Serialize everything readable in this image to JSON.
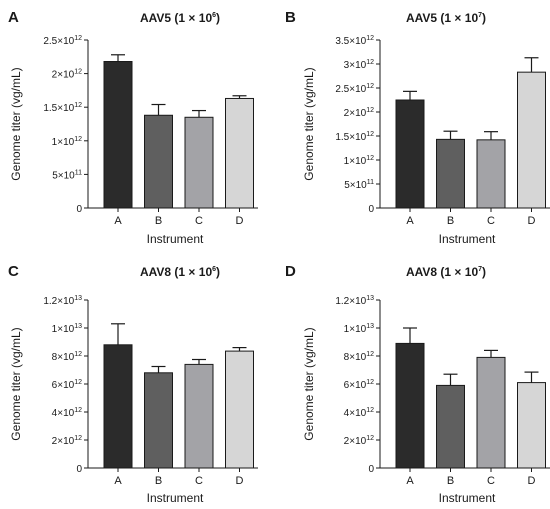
{
  "x_axis_title": "Instrument",
  "y_axis_title": "Genome titer (vg/mL)",
  "colors": [
    "#2b2b2b",
    "#5f5f5f",
    "#a3a3a7",
    "#d6d6d6"
  ],
  "chart_data": [
    {
      "panel": "A",
      "type": "bar",
      "title": "AAV5 (1 × 10",
      "title_exp": "6",
      "title_end": ")",
      "categories": [
        "A",
        "B",
        "C",
        "D"
      ],
      "values": [
        2180000000000.0,
        1380000000000.0,
        1350000000000.0,
        1630000000000.0
      ],
      "errors": [
        100000000000.0,
        160000000000.0,
        100000000000.0,
        40000000000.0
      ],
      "ylim": [
        0,
        2500000000000.0
      ],
      "yticks": [
        {
          "v": 0,
          "m": "0",
          "e": ""
        },
        {
          "v": 500000000000.0,
          "m": "5×10",
          "e": "11"
        },
        {
          "v": 1000000000000.0,
          "m": "1×10",
          "e": "12"
        },
        {
          "v": 1500000000000.0,
          "m": "1.5×10",
          "e": "12"
        },
        {
          "v": 2000000000000.0,
          "m": "2×10",
          "e": "12"
        },
        {
          "v": 2500000000000.0,
          "m": "2.5×10",
          "e": "12"
        }
      ],
      "xlabel": "Instrument",
      "ylabel": "Genome titer (vg/mL)"
    },
    {
      "panel": "B",
      "type": "bar",
      "title": "AAV5 (1 × 10",
      "title_exp": "7",
      "title_end": ")",
      "categories": [
        "A",
        "B",
        "C",
        "D"
      ],
      "values": [
        2250000000000.0,
        1430000000000.0,
        1420000000000.0,
        2830000000000.0
      ],
      "errors": [
        180000000000.0,
        170000000000.0,
        170000000000.0,
        300000000000.0
      ],
      "ylim": [
        0,
        3500000000000.0
      ],
      "yticks": [
        {
          "v": 0,
          "m": "0",
          "e": ""
        },
        {
          "v": 500000000000.0,
          "m": "5×10",
          "e": "11"
        },
        {
          "v": 1000000000000.0,
          "m": "1×10",
          "e": "12"
        },
        {
          "v": 1500000000000.0,
          "m": "1.5×10",
          "e": "12"
        },
        {
          "v": 2000000000000.0,
          "m": "2×10",
          "e": "12"
        },
        {
          "v": 2500000000000.0,
          "m": "2.5×10",
          "e": "12"
        },
        {
          "v": 3000000000000.0,
          "m": "3×10",
          "e": "12"
        },
        {
          "v": 3500000000000.0,
          "m": "3.5×10",
          "e": "12"
        }
      ],
      "xlabel": "Instrument",
      "ylabel": "Genome titer (vg/mL)"
    },
    {
      "panel": "C",
      "type": "bar",
      "title": "AAV8 (1 × 10",
      "title_exp": "6",
      "title_end": ")",
      "categories": [
        "A",
        "B",
        "C",
        "D"
      ],
      "values": [
        8800000000000.0,
        6800000000000.0,
        7400000000000.0,
        8350000000000.0
      ],
      "errors": [
        1500000000000.0,
        450000000000.0,
        350000000000.0,
        250000000000.0
      ],
      "ylim": [
        0,
        12000000000000.0
      ],
      "yticks": [
        {
          "v": 0,
          "m": "0",
          "e": ""
        },
        {
          "v": 2000000000000.0,
          "m": "2×10",
          "e": "12"
        },
        {
          "v": 4000000000000.0,
          "m": "4×10",
          "e": "12"
        },
        {
          "v": 6000000000000.0,
          "m": "6×10",
          "e": "12"
        },
        {
          "v": 8000000000000.0,
          "m": "8×10",
          "e": "12"
        },
        {
          "v": 10000000000000.0,
          "m": "1×10",
          "e": "13"
        },
        {
          "v": 12000000000000.0,
          "m": "1.2×10",
          "e": "13"
        }
      ],
      "xlabel": "Instrument",
      "ylabel": "Genome titer (vg/mL)"
    },
    {
      "panel": "D",
      "type": "bar",
      "title": "AAV8 (1 × 10",
      "title_exp": "7",
      "title_end": ")",
      "categories": [
        "A",
        "B",
        "C",
        "D"
      ],
      "values": [
        8900000000000.0,
        5900000000000.0,
        7900000000000.0,
        6100000000000.0
      ],
      "errors": [
        1100000000000.0,
        800000000000.0,
        500000000000.0,
        750000000000.0
      ],
      "ylim": [
        0,
        12000000000000.0
      ],
      "yticks": [
        {
          "v": 0,
          "m": "0",
          "e": ""
        },
        {
          "v": 2000000000000.0,
          "m": "2×10",
          "e": "12"
        },
        {
          "v": 4000000000000.0,
          "m": "4×10",
          "e": "12"
        },
        {
          "v": 6000000000000.0,
          "m": "6×10",
          "e": "12"
        },
        {
          "v": 8000000000000.0,
          "m": "8×10",
          "e": "12"
        },
        {
          "v": 10000000000000.0,
          "m": "1×10",
          "e": "13"
        },
        {
          "v": 12000000000000.0,
          "m": "1.2×10",
          "e": "13"
        }
      ],
      "xlabel": "Instrument",
      "ylabel": "Genome titer (vg/mL)"
    }
  ]
}
